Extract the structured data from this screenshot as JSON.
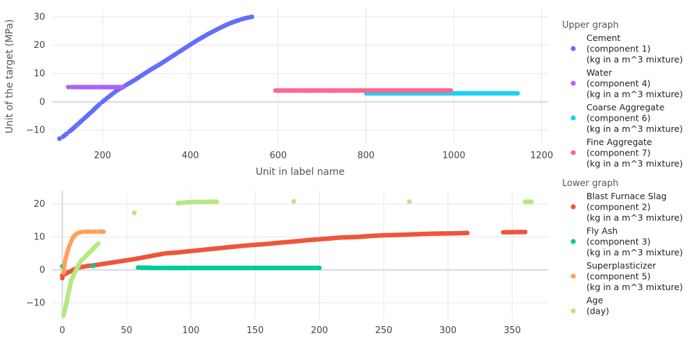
{
  "chart_data": [
    {
      "type": "scatter",
      "panel": "upper",
      "title": "",
      "xlabel": "Unit in label name",
      "ylabel": "Unit of the target (MPa)",
      "xlim": [
        85,
        1215
      ],
      "ylim": [
        -15,
        33
      ],
      "xticks": [
        200,
        400,
        600,
        800,
        1000,
        1200
      ],
      "yticks": [
        -10,
        0,
        10,
        20,
        30
      ],
      "grid": true,
      "series": [
        {
          "name": "Cement (component 1) (kg in a m^3 mixture)",
          "color": "#636efa",
          "points": [
            [
              102,
              -13
            ],
            [
              110,
              -12.3
            ],
            [
              118,
              -11.3
            ],
            [
              125,
              -10.4
            ],
            [
              133,
              -9.4
            ],
            [
              140,
              -8.4
            ],
            [
              148,
              -7.3
            ],
            [
              155,
              -6.3
            ],
            [
              163,
              -5.2
            ],
            [
              170,
              -4.2
            ],
            [
              178,
              -3.1
            ],
            [
              185,
              -2
            ],
            [
              193,
              -0.9
            ],
            [
              200,
              0
            ],
            [
              210,
              1.3
            ],
            [
              220,
              2.5
            ],
            [
              230,
              3.7
            ],
            [
              240,
              4.7
            ],
            [
              250,
              5.6
            ],
            [
              260,
              6.5
            ],
            [
              270,
              7.4
            ],
            [
              280,
              8.4
            ],
            [
              290,
              9.4
            ],
            [
              300,
              10.4
            ],
            [
              310,
              11.4
            ],
            [
              320,
              12.3
            ],
            [
              330,
              13.2
            ],
            [
              340,
              14.2
            ],
            [
              350,
              15.2
            ],
            [
              360,
              16.2
            ],
            [
              370,
              17.2
            ],
            [
              380,
              18.2
            ],
            [
              390,
              19.2
            ],
            [
              400,
              20.2
            ],
            [
              410,
              21.2
            ],
            [
              420,
              22.1
            ],
            [
              430,
              23
            ],
            [
              440,
              23.9
            ],
            [
              450,
              24.7
            ],
            [
              460,
              25.5
            ],
            [
              470,
              26.3
            ],
            [
              480,
              27
            ],
            [
              490,
              27.7
            ],
            [
              500,
              28.3
            ],
            [
              510,
              28.8
            ],
            [
              520,
              29.3
            ],
            [
              530,
              29.7
            ],
            [
              540,
              30
            ]
          ]
        },
        {
          "name": "Water (component 4) (kg in a m^3 mixture)",
          "color": "#ab63fa",
          "points": [
            [
              122,
              5.2
            ],
            [
              130,
              5.2
            ],
            [
              140,
              5.2
            ],
            [
              150,
              5.2
            ],
            [
              160,
              5.2
            ],
            [
              170,
              5.2
            ],
            [
              180,
              5.2
            ],
            [
              190,
              5.2
            ],
            [
              200,
              5.2
            ],
            [
              210,
              5.2
            ],
            [
              220,
              5.2
            ],
            [
              230,
              5.2
            ],
            [
              240,
              5.2
            ],
            [
              247,
              5.2
            ]
          ]
        },
        {
          "name": "Coarse Aggregate (component 6) (kg in a m^3 mixture)",
          "color": "#19d3f3",
          "points": [
            [
              801,
              3
            ],
            [
              825,
              3
            ],
            [
              850,
              3
            ],
            [
              875,
              3
            ],
            [
              900,
              3
            ],
            [
              925,
              3
            ],
            [
              950,
              3
            ],
            [
              975,
              3
            ],
            [
              1000,
              3
            ],
            [
              1025,
              3
            ],
            [
              1050,
              3
            ],
            [
              1075,
              3
            ],
            [
              1100,
              3
            ],
            [
              1125,
              3
            ],
            [
              1145,
              3
            ]
          ]
        },
        {
          "name": "Fine Aggregate (component 7) (kg in a m^3 mixture)",
          "color": "#ff6692",
          "points": [
            [
              594,
              4
            ],
            [
              620,
              4
            ],
            [
              645,
              4
            ],
            [
              670,
              4
            ],
            [
              695,
              4
            ],
            [
              720,
              4
            ],
            [
              745,
              4
            ],
            [
              770,
              4
            ],
            [
              795,
              4
            ],
            [
              820,
              4
            ],
            [
              845,
              4
            ],
            [
              870,
              4
            ],
            [
              895,
              4
            ],
            [
              905,
              4
            ],
            [
              925,
              4
            ],
            [
              945,
              4
            ],
            [
              993,
              4
            ]
          ]
        }
      ]
    },
    {
      "type": "scatter",
      "panel": "lower",
      "title": "",
      "xlabel": "",
      "ylabel": "",
      "xlim": [
        -8,
        378
      ],
      "ylim": [
        -15,
        24
      ],
      "xticks": [
        0,
        50,
        100,
        150,
        200,
        250,
        300,
        350
      ],
      "yticks": [
        -10,
        0,
        10,
        20
      ],
      "grid": true,
      "series": [
        {
          "name": "Blast Furnace Slag (component 2) (kg in a m^3 mixture)",
          "color": "#ef553b",
          "points": [
            [
              0,
              -2.5
            ],
            [
              0,
              -1.7
            ],
            [
              11,
              0.5
            ],
            [
              15,
              0.9
            ],
            [
              20,
              1.2
            ],
            [
              25,
              1.4
            ],
            [
              40,
              2.3
            ],
            [
              45,
              2.6
            ],
            [
              50,
              2.9
            ],
            [
              55,
              3.2
            ],
            [
              73,
              4.5
            ],
            [
              80,
              5
            ],
            [
              90,
              5.3
            ],
            [
              100,
              5.7
            ],
            [
              110,
              6.1
            ],
            [
              120,
              6.5
            ],
            [
              130,
              6.9
            ],
            [
              140,
              7.3
            ],
            [
              150,
              7.6
            ],
            [
              160,
              7.9
            ],
            [
              170,
              8.3
            ],
            [
              180,
              8.6
            ],
            [
              190,
              9
            ],
            [
              200,
              9.3
            ],
            [
              210,
              9.6
            ],
            [
              215,
              9.8
            ],
            [
              230,
              10
            ],
            [
              240,
              10.3
            ],
            [
              250,
              10.5
            ],
            [
              260,
              10.6
            ],
            [
              280,
              10.9
            ],
            [
              290,
              11
            ],
            [
              305,
              11.1
            ],
            [
              315,
              11.2
            ],
            [
              343,
              11.4
            ],
            [
              360,
              11.5
            ]
          ]
        },
        {
          "name": "Fly Ash (component 3) (kg in a m^3 mixture)",
          "color": "#00cc96",
          "points": [
            [
              0,
              1.1
            ],
            [
              24,
              1.2
            ],
            [
              59,
              0.7
            ],
            [
              72,
              0.6
            ],
            [
              80,
              0.6
            ],
            [
              90,
              0.6
            ],
            [
              100,
              0.6
            ],
            [
              110,
              0.6
            ],
            [
              120,
              0.6
            ],
            [
              130,
              0.6
            ],
            [
              140,
              0.6
            ],
            [
              150,
              0.6
            ],
            [
              160,
              0.6
            ],
            [
              170,
              0.6
            ],
            [
              180,
              0.6
            ],
            [
              190,
              0.6
            ],
            [
              200,
              0.6
            ]
          ]
        },
        {
          "name": "Superplasticizer (component 5) (kg in a m^3 mixture)",
          "color": "#ffa15a",
          "points": [
            [
              1,
              -0.8
            ],
            [
              1.5,
              1
            ],
            [
              2,
              2.5
            ],
            [
              3,
              4
            ],
            [
              4,
              5.5
            ],
            [
              5,
              6.8
            ],
            [
              6,
              7.8
            ],
            [
              7,
              8.8
            ],
            [
              8,
              9.6
            ],
            [
              9,
              10.2
            ],
            [
              10,
              10.6
            ],
            [
              11,
              11
            ],
            [
              13,
              11.3
            ],
            [
              15,
              11.5
            ],
            [
              18,
              11.6
            ],
            [
              22,
              11.6
            ],
            [
              25,
              11.6
            ],
            [
              28,
              11.6
            ],
            [
              32,
              11.6
            ]
          ]
        },
        {
          "name": "Age (day)",
          "color": "#b6e880",
          "points": [
            [
              1,
              -13.8
            ],
            [
              3,
              -10.5
            ],
            [
              7,
              -3
            ],
            [
              14,
              2.5
            ],
            [
              28,
              8
            ],
            [
              56,
              17.3
            ],
            [
              90,
              20.3
            ],
            [
              91,
              20.3
            ],
            [
              100,
              20.6
            ],
            [
              120,
              20.7
            ],
            [
              180,
              20.8
            ],
            [
              270,
              20.7
            ],
            [
              360,
              20.7
            ],
            [
              365,
              20.7
            ]
          ]
        }
      ]
    }
  ],
  "legend": {
    "groups": [
      {
        "title": "Upper graph",
        "items": [
          {
            "lines": [
              "Cement",
              "(component 1)",
              "(kg in a m^3 mixture)"
            ],
            "color": "#636efa"
          },
          {
            "lines": [
              "Water",
              "(component 4)",
              "(kg in a m^3 mixture)"
            ],
            "color": "#ab63fa"
          },
          {
            "lines": [
              "Coarse Aggregate",
              "(component 6)",
              "(kg in a m^3 mixture)"
            ],
            "color": "#19d3f3"
          },
          {
            "lines": [
              "Fine Aggregate",
              "(component 7)",
              "(kg in a m^3 mixture)"
            ],
            "color": "#ff6692"
          }
        ]
      },
      {
        "title": "Lower graph",
        "items": [
          {
            "lines": [
              "Blast Furnace Slag",
              "(component 2)",
              "(kg in a m^3 mixture)"
            ],
            "color": "#ef553b"
          },
          {
            "lines": [
              "Fly Ash",
              "(component 3)",
              "(kg in a m^3 mixture)"
            ],
            "color": "#00cc96"
          },
          {
            "lines": [
              "Superplasticizer",
              "(component 5)",
              "(kg in a m^3 mixture)"
            ],
            "color": "#ffa15a"
          },
          {
            "lines": [
              "Age",
              "(day)"
            ],
            "color": "#b6e880"
          }
        ]
      }
    ]
  }
}
